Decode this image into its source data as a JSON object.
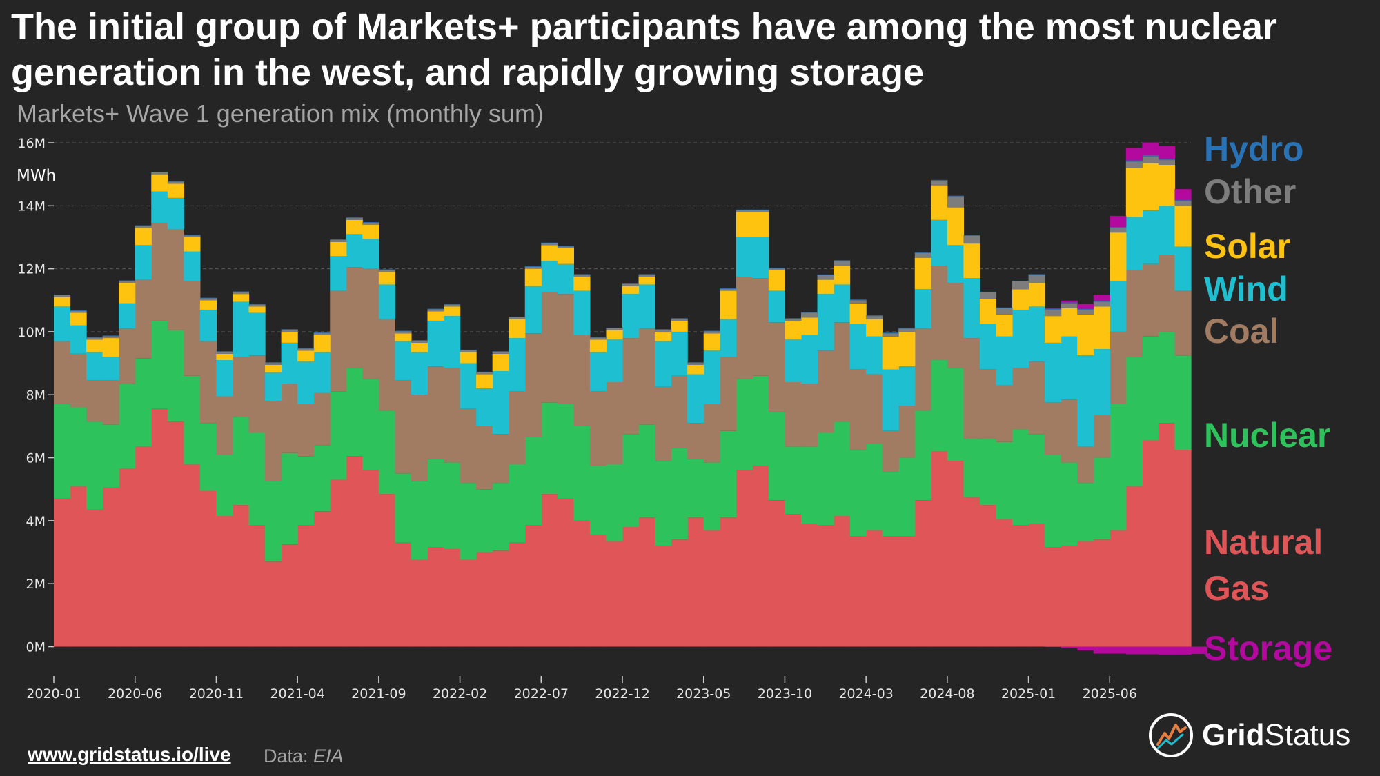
{
  "title": "The initial group of Markets+ participants have among the most nuclear generation in the west, and rapidly growing storage",
  "subtitle": "Markets+ Wave 1 generation mix (monthly sum)",
  "footer": {
    "link": "www.gridstatus.io/live",
    "source_label": "Data:",
    "source_name": "EIA"
  },
  "brand": {
    "part1": "Grid",
    "part2": "Status"
  },
  "colors": {
    "background": "#252525",
    "storage": "#b3099e",
    "natural_gas": "#e05557",
    "nuclear": "#2ec25c",
    "coal": "#a27b63",
    "wind": "#1dbfd1",
    "solar": "#fec30f",
    "other": "#7d7d7d",
    "hydro": "#2a72b6"
  },
  "chart_data": {
    "type": "area",
    "stacked": true,
    "step": true,
    "ylabel": "MWh",
    "ylim": [
      -500000,
      16000000
    ],
    "yticks": [
      0,
      2000000,
      4000000,
      6000000,
      8000000,
      10000000,
      12000000,
      14000000,
      16000000
    ],
    "ytick_labels": [
      "0M",
      "2M",
      "4M",
      "6M",
      "8M",
      "10M",
      "12M",
      "14M",
      "16M"
    ],
    "x_start": "2020-01",
    "x_tick_labels": [
      "2020-01",
      "2020-06",
      "2020-11",
      "2021-04",
      "2021-09",
      "2022-02",
      "2022-07",
      "2022-12",
      "2023-05",
      "2023-10",
      "2024-03",
      "2024-08",
      "2025-01",
      "2025-06"
    ],
    "x_tick_index": [
      0,
      5,
      10,
      15,
      20,
      25,
      30,
      35,
      40,
      45,
      50,
      55,
      60,
      65
    ],
    "legend_order": [
      "Hydro",
      "Other",
      "Solar",
      "Wind",
      "Coal",
      "Nuclear",
      "Natural Gas",
      "Storage"
    ],
    "legend_label_lines": {
      "Hydro": [
        "Hydro"
      ],
      "Other": [
        "Other"
      ],
      "Solar": [
        "Solar"
      ],
      "Wind": [
        "Wind"
      ],
      "Coal": [
        "Coal"
      ],
      "Nuclear": [
        "Nuclear"
      ],
      "Natural Gas": [
        "Natural",
        "Gas"
      ],
      "Storage": [
        "Storage"
      ]
    },
    "series": [
      {
        "name": "Storage",
        "key": "storage",
        "values": [
          0,
          0,
          0,
          0,
          0,
          0,
          0,
          0,
          0,
          0,
          0,
          0,
          0,
          0,
          0,
          0,
          0,
          0,
          0,
          0,
          0,
          0,
          0,
          0,
          0,
          0,
          0,
          0,
          0,
          0,
          0,
          0,
          0,
          0,
          0,
          0,
          0,
          0,
          0,
          0,
          0,
          0,
          0,
          0,
          0,
          0,
          0,
          0,
          0,
          0,
          0,
          0,
          0,
          0,
          0,
          0,
          0,
          0,
          0,
          0,
          0,
          -10000,
          -50000,
          -120000,
          -220000,
          -220000,
          -240000,
          -240000,
          -250000,
          -250000,
          -230000
        ]
      },
      {
        "name": "Natural Gas",
        "key": "natural_gas",
        "values": [
          4700000,
          5100000,
          4350000,
          5050000,
          5650000,
          6350000,
          7550000,
          7150000,
          5800000,
          4950000,
          4150000,
          4500000,
          3850000,
          2700000,
          3250000,
          3850000,
          4300000,
          5300000,
          6050000,
          5600000,
          4850000,
          3300000,
          2750000,
          3150000,
          3100000,
          2750000,
          3000000,
          3050000,
          3300000,
          3850000,
          4850000,
          4700000,
          4000000,
          3550000,
          3350000,
          3800000,
          4100000,
          3200000,
          3400000,
          4100000,
          3700000,
          4100000,
          5600000,
          5750000,
          4650000,
          4200000,
          3900000,
          3850000,
          4150000,
          3500000,
          3700000,
          3500000,
          3500000,
          4650000,
          6200000,
          5900000,
          4750000,
          4500000,
          4050000,
          3850000,
          3900000,
          3150000,
          3200000,
          3350000,
          3400000,
          3700000,
          5100000,
          6550000,
          7100000,
          6250000
        ]
      },
      {
        "name": "Nuclear",
        "key": "nuclear",
        "values": [
          3000000,
          2500000,
          2800000,
          2000000,
          2700000,
          2800000,
          2800000,
          2900000,
          2800000,
          2150000,
          1950000,
          2800000,
          2950000,
          2550000,
          2900000,
          2200000,
          2100000,
          2800000,
          2800000,
          2900000,
          2650000,
          2200000,
          2500000,
          2800000,
          2750000,
          2450000,
          2000000,
          2150000,
          2500000,
          2800000,
          2900000,
          3000000,
          3000000,
          2200000,
          2450000,
          2950000,
          2950000,
          2700000,
          2900000,
          1850000,
          2150000,
          2750000,
          2900000,
          2850000,
          2800000,
          2150000,
          2450000,
          2950000,
          3000000,
          2750000,
          2750000,
          2050000,
          2500000,
          2850000,
          2900000,
          2950000,
          1850000,
          2100000,
          2450000,
          3050000,
          2850000,
          2950000,
          2650000,
          1850000,
          2600000,
          4000000,
          4100000,
          3300000,
          2900000,
          3000000
        ]
      },
      {
        "name": "Coal",
        "key": "coal",
        "values": [
          2000000,
          1700000,
          1300000,
          1400000,
          1750000,
          2500000,
          3100000,
          3200000,
          3000000,
          2600000,
          1850000,
          1900000,
          2450000,
          2550000,
          2200000,
          1650000,
          1650000,
          3200000,
          3200000,
          3500000,
          2900000,
          2950000,
          2750000,
          2950000,
          3000000,
          2350000,
          2000000,
          1550000,
          2300000,
          3300000,
          3500000,
          3500000,
          2900000,
          2350000,
          2600000,
          3050000,
          3050000,
          2350000,
          2300000,
          1150000,
          1850000,
          2350000,
          3250000,
          3100000,
          2850000,
          2050000,
          2000000,
          2600000,
          3150000,
          2550000,
          2200000,
          1300000,
          1650000,
          2600000,
          3000000,
          2700000,
          3200000,
          2200000,
          1800000,
          1950000,
          2300000,
          1650000,
          2000000,
          1150000,
          1350000,
          2300000,
          2750000,
          2300000,
          2450000,
          2050000
        ]
      },
      {
        "name": "Wind",
        "key": "wind",
        "values": [
          1100000,
          900000,
          900000,
          750000,
          800000,
          1100000,
          1000000,
          1000000,
          950000,
          1000000,
          1150000,
          1750000,
          1350000,
          900000,
          1300000,
          1350000,
          1300000,
          1100000,
          1050000,
          950000,
          1100000,
          1250000,
          1350000,
          1450000,
          1650000,
          1450000,
          1200000,
          2000000,
          1700000,
          1500000,
          1000000,
          950000,
          1400000,
          1250000,
          1350000,
          1400000,
          1400000,
          1450000,
          1400000,
          1550000,
          1700000,
          1200000,
          1250000,
          1300000,
          1000000,
          1350000,
          1550000,
          1800000,
          1200000,
          1450000,
          1200000,
          1950000,
          1250000,
          1250000,
          1450000,
          1200000,
          1900000,
          1450000,
          1550000,
          1850000,
          1750000,
          1900000,
          2000000,
          2900000,
          2100000,
          1600000,
          1700000,
          1700000,
          1550000,
          1400000
        ]
      },
      {
        "name": "Solar",
        "key": "solar",
        "values": [
          300000,
          400000,
          400000,
          600000,
          650000,
          550000,
          550000,
          450000,
          450000,
          300000,
          200000,
          250000,
          200000,
          250000,
          350000,
          350000,
          550000,
          450000,
          450000,
          450000,
          400000,
          250000,
          300000,
          300000,
          300000,
          350000,
          450000,
          550000,
          600000,
          550000,
          500000,
          500000,
          450000,
          400000,
          300000,
          250000,
          250000,
          300000,
          350000,
          300000,
          550000,
          900000,
          800000,
          800000,
          650000,
          600000,
          550000,
          450000,
          600000,
          650000,
          550000,
          1050000,
          1100000,
          1000000,
          1100000,
          1200000,
          1100000,
          800000,
          700000,
          650000,
          750000,
          850000,
          900000,
          1300000,
          1350000,
          1550000,
          1550000,
          1500000,
          1300000,
          1300000
        ]
      },
      {
        "name": "Other",
        "key": "other",
        "values": [
          60000,
          60000,
          60000,
          60000,
          60000,
          60000,
          60000,
          60000,
          60000,
          60000,
          60000,
          60000,
          60000,
          60000,
          60000,
          60000,
          60000,
          60000,
          60000,
          60000,
          60000,
          60000,
          60000,
          60000,
          60000,
          60000,
          60000,
          60000,
          60000,
          60000,
          60000,
          60000,
          60000,
          60000,
          60000,
          60000,
          60000,
          60000,
          60000,
          60000,
          60000,
          60000,
          60000,
          60000,
          60000,
          60000,
          150000,
          150000,
          150000,
          100000,
          100000,
          100000,
          100000,
          150000,
          150000,
          350000,
          250000,
          200000,
          200000,
          250000,
          250000,
          200000,
          150000,
          150000,
          150000,
          150000,
          200000,
          220000,
          150000,
          150000
        ]
      },
      {
        "name": "Hydro",
        "key": "hydro",
        "values": [
          20000,
          20000,
          20000,
          20000,
          20000,
          20000,
          20000,
          20000,
          20000,
          20000,
          20000,
          20000,
          20000,
          20000,
          20000,
          20000,
          20000,
          20000,
          20000,
          20000,
          20000,
          20000,
          20000,
          20000,
          20000,
          20000,
          20000,
          20000,
          20000,
          20000,
          20000,
          20000,
          20000,
          20000,
          20000,
          20000,
          20000,
          20000,
          20000,
          20000,
          20000,
          20000,
          20000,
          20000,
          20000,
          20000,
          20000,
          20000,
          20000,
          20000,
          20000,
          20000,
          20000,
          20000,
          20000,
          20000,
          20000,
          20000,
          20000,
          20000,
          30000,
          30000,
          30000,
          30000,
          30000,
          30000,
          40000,
          40000,
          40000,
          30000
        ]
      },
      {
        "name": "Storage (charging top)",
        "key": "storage_top",
        "values": [
          0,
          0,
          0,
          0,
          0,
          0,
          0,
          0,
          0,
          0,
          0,
          0,
          0,
          0,
          0,
          0,
          0,
          0,
          0,
          0,
          0,
          0,
          0,
          0,
          0,
          0,
          0,
          0,
          0,
          0,
          0,
          0,
          0,
          0,
          0,
          0,
          0,
          0,
          0,
          0,
          0,
          0,
          0,
          0,
          0,
          0,
          0,
          0,
          0,
          0,
          0,
          0,
          0,
          0,
          0,
          0,
          0,
          0,
          0,
          0,
          0,
          20000,
          60000,
          150000,
          200000,
          350000,
          400000,
          400000,
          400000,
          350000
        ]
      }
    ]
  }
}
